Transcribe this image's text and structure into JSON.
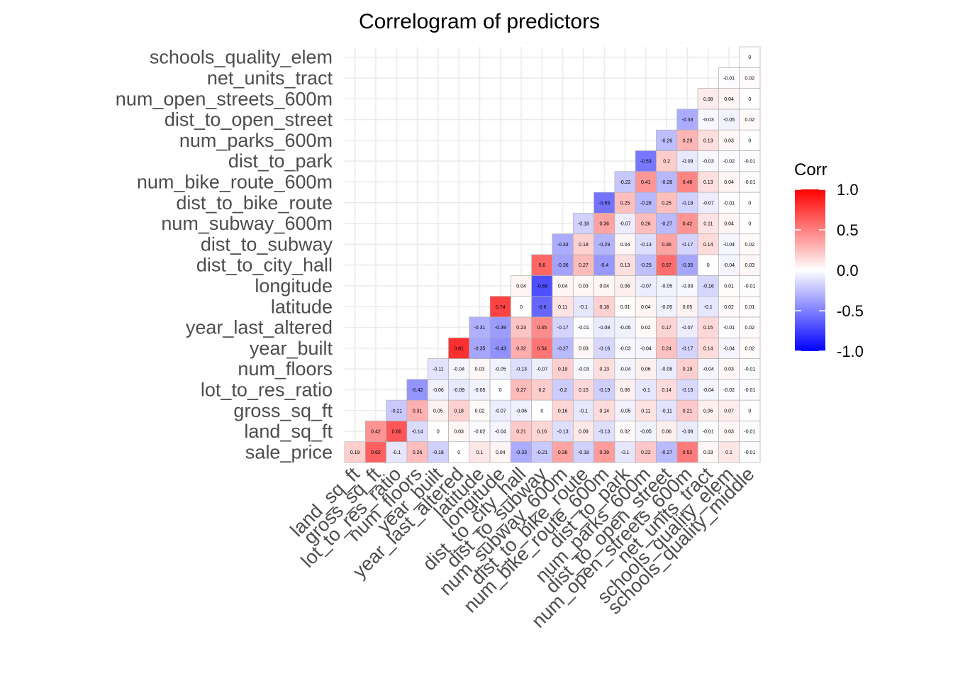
{
  "chart_data": {
    "type": "heatmap",
    "title": "Correlogram of predictors",
    "legend": {
      "title": "Corr",
      "placement": "right",
      "ticks": [
        "1.0",
        "0.5",
        "0.0",
        "-0.5",
        "-1.0"
      ],
      "range": [
        -1,
        1
      ],
      "colors": {
        "low": "#0000ff",
        "mid": "#ffffff",
        "high": "#ff0000"
      }
    },
    "x_labels": [
      "land_sq_ft",
      "gross_sq_ft",
      "lot_to_res_ratio",
      "num_floors",
      "year_built",
      "year_last_altered",
      "latitude",
      "longitude",
      "dist_to_city_hall",
      "dist_to_subway",
      "num_subway_600m",
      "dist_to_bike_route",
      "num_bike_route_600m",
      "dist_to_park",
      "num_parks_600m",
      "dist_to_open_street",
      "num_open_streets_600m",
      "net_units_tract",
      "schools_quality_elem",
      "schools_quality_middle"
    ],
    "y_labels": [
      "sale_price",
      "land_sq_ft",
      "gross_sq_ft",
      "lot_to_res_ratio",
      "num_floors",
      "year_built",
      "year_last_altered",
      "latitude",
      "longitude",
      "dist_to_city_hall",
      "dist_to_subway",
      "num_subway_600m",
      "dist_to_bike_route",
      "num_bike_route_600m",
      "dist_to_park",
      "num_parks_600m",
      "dist_to_open_street",
      "num_open_streets_600m",
      "net_units_tract",
      "schools_quality_elem"
    ],
    "values": [
      [
        0.19,
        0.62,
        -0.1,
        0.26,
        -0.18,
        0,
        0.1,
        0.04,
        -0.33,
        -0.21,
        0.36,
        -0.18,
        0.39,
        -0.1,
        0.22,
        -0.27,
        0.52,
        0.03,
        0.1,
        -0.01
      ],
      [
        null,
        0.42,
        0.66,
        -0.14,
        0,
        0.03,
        -0.02,
        -0.04,
        0.21,
        0.16,
        -0.13,
        0.09,
        -0.13,
        0.02,
        -0.05,
        0.06,
        -0.08,
        -0.01,
        0.03,
        -0.01
      ],
      [
        null,
        null,
        -0.21,
        0.31,
        0.05,
        0.18,
        0.02,
        -0.07,
        -0.06,
        0,
        0.16,
        -0.1,
        0.14,
        -0.05,
        0.11,
        -0.11,
        0.21,
        0.06,
        0.07,
        0
      ],
      [
        null,
        null,
        null,
        -0.42,
        -0.06,
        -0.09,
        -0.05,
        0,
        0.27,
        0.2,
        -0.2,
        0.15,
        -0.19,
        0.06,
        -0.1,
        0.14,
        -0.15,
        -0.04,
        -0.02,
        -0.01
      ],
      [
        null,
        null,
        null,
        null,
        -0.11,
        -0.04,
        0.03,
        -0.05,
        -0.13,
        -0.07,
        0.19,
        -0.03,
        0.13,
        -0.04,
        0.06,
        -0.08,
        0.19,
        -0.04,
        0.03,
        -0.01
      ],
      [
        null,
        null,
        null,
        null,
        null,
        0.81,
        -0.35,
        -0.43,
        0.32,
        0.54,
        -0.27,
        0.03,
        -0.16,
        -0.03,
        -0.04,
        0.24,
        -0.17,
        0.14,
        -0.04,
        0.02
      ],
      [
        null,
        null,
        null,
        null,
        null,
        null,
        -0.31,
        -0.39,
        0.23,
        0.45,
        -0.17,
        -0.01,
        -0.08,
        -0.05,
        0.02,
        0.17,
        -0.07,
        0.15,
        -0.01,
        0.02
      ],
      [
        null,
        null,
        null,
        null,
        null,
        null,
        null,
        0.74,
        0,
        -0.6,
        0.11,
        -0.1,
        0.18,
        0.01,
        0.04,
        -0.05,
        0.05,
        -0.1,
        0.02,
        0.01
      ],
      [
        null,
        null,
        null,
        null,
        null,
        null,
        null,
        null,
        0.04,
        -0.69,
        0.04,
        0.03,
        0.04,
        0.06,
        -0.07,
        -0.05,
        -0.03,
        -0.16,
        0.01,
        -0.01
      ],
      [
        null,
        null,
        null,
        null,
        null,
        null,
        null,
        null,
        null,
        0.6,
        -0.36,
        0.27,
        -0.4,
        0.13,
        -0.25,
        0.57,
        -0.35,
        0,
        -0.04,
        0.03
      ],
      [
        null,
        null,
        null,
        null,
        null,
        null,
        null,
        null,
        null,
        null,
        -0.33,
        0.18,
        -0.29,
        0.04,
        -0.13,
        0.36,
        -0.17,
        0.14,
        -0.04,
        0.02
      ],
      [
        null,
        null,
        null,
        null,
        null,
        null,
        null,
        null,
        null,
        null,
        null,
        -0.18,
        0.36,
        -0.07,
        0.26,
        -0.27,
        0.42,
        0.11,
        0.04,
        0
      ],
      [
        null,
        null,
        null,
        null,
        null,
        null,
        null,
        null,
        null,
        null,
        null,
        null,
        -0.55,
        0.25,
        -0.28,
        0.25,
        -0.18,
        -0.07,
        -0.01,
        0
      ],
      [
        null,
        null,
        null,
        null,
        null,
        null,
        null,
        null,
        null,
        null,
        null,
        null,
        null,
        -0.22,
        0.41,
        -0.28,
        0.48,
        0.13,
        0.04,
        -0.01
      ],
      [
        null,
        null,
        null,
        null,
        null,
        null,
        null,
        null,
        null,
        null,
        null,
        null,
        null,
        null,
        -0.53,
        0.2,
        -0.09,
        -0.03,
        -0.02,
        -0.01
      ],
      [
        null,
        null,
        null,
        null,
        null,
        null,
        null,
        null,
        null,
        null,
        null,
        null,
        null,
        null,
        null,
        -0.26,
        0.29,
        0.13,
        0.03,
        0
      ],
      [
        null,
        null,
        null,
        null,
        null,
        null,
        null,
        null,
        null,
        null,
        null,
        null,
        null,
        null,
        null,
        null,
        -0.33,
        -0.03,
        -0.05,
        0.02
      ],
      [
        null,
        null,
        null,
        null,
        null,
        null,
        null,
        null,
        null,
        null,
        null,
        null,
        null,
        null,
        null,
        null,
        null,
        0.08,
        0.04,
        0
      ],
      [
        null,
        null,
        null,
        null,
        null,
        null,
        null,
        null,
        null,
        null,
        null,
        null,
        null,
        null,
        null,
        null,
        null,
        null,
        -0.01,
        0.02
      ],
      [
        null,
        null,
        null,
        null,
        null,
        null,
        null,
        null,
        null,
        null,
        null,
        null,
        null,
        null,
        null,
        null,
        null,
        null,
        null,
        0
      ]
    ],
    "grid": true
  }
}
